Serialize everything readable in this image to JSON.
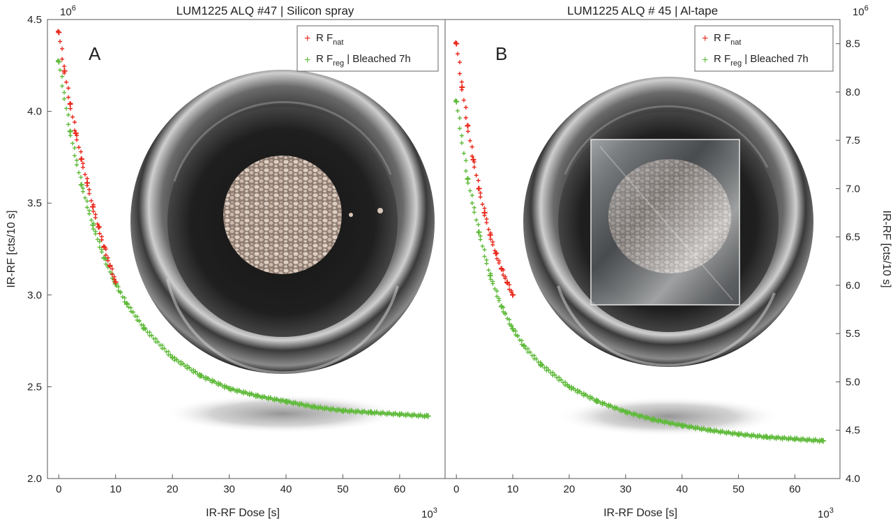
{
  "chart_data": [
    {
      "type": "scatter",
      "panel": "A",
      "title": "LUM1225  ALQ #47 | Silicon spray",
      "xlabel": "IR-RF Dose [s]",
      "ylabel": "IR-RF [cts/10 s]",
      "x_multiplier": "10",
      "x_multiplier_exp": "3",
      "y_multiplier": "10",
      "y_multiplier_exp": "6",
      "xlim": [
        -2,
        68
      ],
      "ylim": [
        2.0,
        4.5
      ],
      "xticks": [
        "0",
        "10",
        "20",
        "30",
        "40",
        "50",
        "60"
      ],
      "yticks": [
        "2.0",
        "2.5",
        "3.0",
        "3.5",
        "4.0",
        "4.5"
      ],
      "legend_position": "top-right",
      "series": [
        {
          "name_main": "R F",
          "name_sub": "nat",
          "name_suffix": "",
          "color": "#e8291c",
          "x": [
            0.0,
            1.0,
            2.0,
            3.0,
            4.0,
            5.0,
            6.0,
            7.0,
            8.0,
            9.0,
            10.0
          ],
          "y": [
            4.43,
            4.22,
            4.04,
            3.88,
            3.74,
            3.61,
            3.48,
            3.37,
            3.26,
            3.16,
            3.07
          ]
        },
        {
          "name_main": "R F",
          "name_sub": "reg",
          "name_suffix": " | Bleached 7h",
          "color": "#5fba3a",
          "x": [
            0,
            2,
            4,
            6,
            8,
            10,
            12,
            15,
            20,
            25,
            30,
            35,
            40,
            45,
            50,
            55,
            60,
            65
          ],
          "y": [
            4.27,
            3.89,
            3.6,
            3.38,
            3.2,
            3.06,
            2.95,
            2.82,
            2.66,
            2.56,
            2.49,
            2.45,
            2.42,
            2.39,
            2.37,
            2.36,
            2.35,
            2.34
          ]
        }
      ]
    },
    {
      "type": "scatter",
      "panel": "B",
      "title": "LUM1225 ALQ # 45 | Al-tape",
      "xlabel": "IR-RF Dose [s]",
      "ylabel": "IR-RF [cts/10 s]",
      "x_multiplier": "10",
      "x_multiplier_exp": "3",
      "y_multiplier": "10",
      "y_multiplier_exp": "6",
      "xlim": [
        -2,
        68
      ],
      "ylim": [
        4.0,
        8.75
      ],
      "xticks": [
        "0",
        "10",
        "20",
        "30",
        "40",
        "50",
        "60"
      ],
      "yticks": [
        "4.0",
        "4.5",
        "5.0",
        "5.5",
        "6.0",
        "6.5",
        "7.0",
        "7.5",
        "8.0",
        "8.5"
      ],
      "legend_position": "top-right",
      "series": [
        {
          "name_main": "R F",
          "name_sub": "nat",
          "name_suffix": "",
          "color": "#e8291c",
          "x": [
            0.0,
            1.0,
            2.0,
            3.0,
            4.0,
            5.0,
            6.0,
            7.0,
            8.0,
            9.0,
            10.0
          ],
          "y": [
            8.5,
            8.05,
            7.65,
            7.3,
            7.0,
            6.75,
            6.52,
            6.33,
            6.17,
            6.03,
            5.9
          ]
        },
        {
          "name_main": "R F",
          "name_sub": "reg",
          "name_suffix": " | Bleached 7h",
          "color": "#5fba3a",
          "x": [
            0,
            2,
            4,
            6,
            8,
            10,
            12,
            15,
            20,
            25,
            30,
            35,
            40,
            45,
            50,
            55,
            60,
            65
          ],
          "y": [
            7.9,
            7.1,
            6.55,
            6.1,
            5.78,
            5.55,
            5.37,
            5.18,
            4.95,
            4.8,
            4.69,
            4.61,
            4.55,
            4.5,
            4.46,
            4.43,
            4.41,
            4.39
          ]
        }
      ]
    }
  ]
}
